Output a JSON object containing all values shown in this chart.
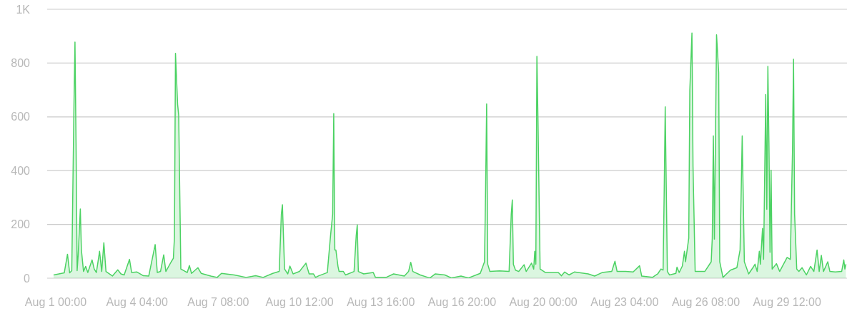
{
  "chart_data": {
    "type": "area",
    "grid": "y",
    "xlim": [
      "--07-31T16:00",
      "--08-31T20:00"
    ],
    "ylim": [
      0,
      1000
    ],
    "yticks": [
      0,
      200,
      400,
      600,
      800,
      {
        "value": 1000,
        "label": "1K"
      }
    ],
    "xticks": [
      {
        "value": "--08-01T00:00",
        "label": "Aug 1 00:00"
      },
      {
        "value": "--08-04T04:00",
        "label": "Aug 4 04:00"
      },
      {
        "value": "--08-07T08:00",
        "label": "Aug 7 08:00"
      },
      {
        "value": "--08-10T12:00",
        "label": "Aug 10 12:00"
      },
      {
        "value": "--08-13T16:00",
        "label": "Aug 13 16:00"
      },
      {
        "value": "--08-16T20:00",
        "label": "Aug 16 20:00"
      },
      {
        "value": "--08-20T00:00",
        "label": "Aug 20 00:00"
      },
      {
        "value": "--08-23T04:00",
        "label": "Aug 23 04:00"
      },
      {
        "value": "--08-26T08:00",
        "label": "Aug 26 08:00"
      },
      {
        "value": "--08-29T12:00",
        "label": "Aug 29 12:00"
      }
    ],
    "x": [
      "--07-31T22:00",
      "--08-01T08:00",
      "--08-01T11:00",
      "--08-01T13:00",
      "--08-01T15:00",
      "--08-01T17:00",
      "--08-01T18:00",
      "--08-01T19:00",
      "--08-01T20:00",
      "--08-01T21:00",
      "--08-01T23:00",
      "--08-02T00:00",
      "--08-02T02:00",
      "--08-02T04:00",
      "--08-02T06:00",
      "--08-02T10:00",
      "--08-02T12:00",
      "--08-02T14:00",
      "--08-02T17:00",
      "--08-02T19:00",
      "--08-02T21:00",
      "--08-02T23:00",
      "--08-03T05:00",
      "--08-03T10:00",
      "--08-03T13:00",
      "--08-03T16:00",
      "--08-03T21:00",
      "--08-03T23:00",
      "--08-04T04:00",
      "--08-04T10:00",
      "--08-04T15:00",
      "--08-04T21:00",
      "--08-04T23:00",
      "--08-05T02:00",
      "--08-05T05:00",
      "--08-05T07:00",
      "--08-05T12:00",
      "--08-05T14:00",
      "--08-05T15:00",
      "--08-05T16:00",
      "--08-05T18:00",
      "--08-05T19:00",
      "--08-05T21:00",
      "--08-06T03:00",
      "--08-06T05:00",
      "--08-06T07:00",
      "--08-06T13:00",
      "--08-06T16:00",
      "--08-07T01:00",
      "--08-07T07:00",
      "--08-07T11:00",
      "--08-07T23:00",
      "--08-08T10:00",
      "--08-08T19:00",
      "--08-09T02:00",
      "--08-09T11:00",
      "--08-09T17:00",
      "--08-09T19:00",
      "--08-09T20:00",
      "--08-09T22:00",
      "--08-10T01:00",
      "--08-10T03:00",
      "--08-10T06:00",
      "--08-10T12:00",
      "--08-10T18:00",
      "--08-10T21:00",
      "--08-11T01:00",
      "--08-11T03:00",
      "--08-11T06:00",
      "--08-11T14:00",
      "--08-11T17:00",
      "--08-11T19:00",
      "--08-11T20:00",
      "--08-11T21:00",
      "--08-11T22:00",
      "--08-12T00:00",
      "--08-12T01:00",
      "--08-12T05:00",
      "--08-12T07:00",
      "--08-12T15:00",
      "--08-12T17:00",
      "--08-12T18:00",
      "--08-12T19:00",
      "--08-13T00:00",
      "--08-13T09:00",
      "--08-13T11:00",
      "--08-13T21:00",
      "--08-14T04:00",
      "--08-14T14:00",
      "--08-14T18:00",
      "--08-14T20:00",
      "--08-14T22:00",
      "--08-15T05:00",
      "--08-15T12:00",
      "--08-15T14:00",
      "--08-15T19:00",
      "--08-16T04:00",
      "--08-16T10:00",
      "--08-16T19:00",
      "--08-17T02:00",
      "--08-17T13:00",
      "--08-17T17:00",
      "--08-17T18:00",
      "--08-17T19:00",
      "--08-17T20:00",
      "--08-17T22:00",
      "--08-18T07:00",
      "--08-18T16:00",
      "--08-18T18:00",
      "--08-18T19:00",
      "--08-18T20:00",
      "--08-18T22:00",
      "--08-19T01:00",
      "--08-19T06:00",
      "--08-19T08:00",
      "--08-19T13:00",
      "--08-19T15:00",
      "--08-19T16:00",
      "--08-19T17:00",
      "--08-19T18:00",
      "--08-19T19:00",
      "--08-19T21:00",
      "--08-20T02:00",
      "--08-20T14:00",
      "--08-20T17:00",
      "--08-20T20:00",
      "--08-21T00:00",
      "--08-21T05:00",
      "--08-21T18:00",
      "--08-22T00:00",
      "--08-22T07:00",
      "--08-22T16:00",
      "--08-22T19:00",
      "--08-22T21:00",
      "--08-23T05:00",
      "--08-23T12:00",
      "--08-23T18:00",
      "--08-23T20:00",
      "--08-24T06:00",
      "--08-24T11:00",
      "--08-24T14:00",
      "--08-24T16:00",
      "--08-24T17:00",
      "--08-24T18:00",
      "--08-24T20:00",
      "--08-24T22:00",
      "--08-25T04:00",
      "--08-25T05:00",
      "--08-25T07:00",
      "--08-25T10:00",
      "--08-25T12:00",
      "--08-25T13:00",
      "--08-25T16:00",
      "--08-25T17:00",
      "--08-25T19:00",
      "--08-25T20:00",
      "--08-25T22:00",
      "--08-26T07:00",
      "--08-26T13:00",
      "--08-26T14:00",
      "--08-26T15:00",
      "--08-26T16:00",
      "--08-26T18:00",
      "--08-26T20:00",
      "--08-26T21:00",
      "--08-27T00:00",
      "--08-27T07:00",
      "--08-27T13:00",
      "--08-27T16:00",
      "--08-27T18:00",
      "--08-27T20:00",
      "--08-28T00:00",
      "--08-28T04:00",
      "--08-28T06:00",
      "--08-28T08:00",
      "--08-28T10:00",
      "--08-28T11:00",
      "--08-28T13:00",
      "--08-28T14:00",
      "--08-28T16:00",
      "--08-28T17:00",
      "--08-28T18:00",
      "--08-28T19:00",
      "--08-28T20:00",
      "--08-28T21:00",
      "--08-28T22:00",
      "--08-29T02:00",
      "--08-29T05:00",
      "--08-29T12:00",
      "--08-29T15:00",
      "--08-29T17:00",
      "--08-29T18:00",
      "--08-29T19:00",
      "--08-29T21:00",
      "--08-29T23:00",
      "--08-30T02:00",
      "--08-30T06:00",
      "--08-30T10:00",
      "--08-30T13:00",
      "--08-30T16:00",
      "--08-30T18:00",
      "--08-30T20:00",
      "--08-30T22:00",
      "--08-31T02:00",
      "--08-31T04:00",
      "--08-31T09:00",
      "--08-31T15:00",
      "--08-31T17:00",
      "--08-31T18:00",
      "--08-31T19:00"
    ],
    "series": [
      {
        "color": "#4cd263",
        "values": [
          12,
          20,
          89,
          20,
          28,
          628,
          878,
          504,
          28,
          87,
          257,
          105,
          25,
          44,
          21,
          68,
          34,
          21,
          100,
          25,
          132,
          25,
          8,
          31,
          16,
          12,
          70,
          21,
          23,
          9,
          8,
          125,
          21,
          25,
          87,
          25,
          61,
          74,
          150,
          836,
          646,
          606,
          34,
          21,
          47,
          18,
          39,
          18,
          8,
          3,
          18,
          12,
          3,
          9,
          3,
          18,
          25,
          238,
          273,
          34,
          16,
          45,
          16,
          25,
          56,
          16,
          16,
          3,
          9,
          21,
          158,
          238,
          612,
          105,
          105,
          43,
          25,
          25,
          12,
          25,
          158,
          198,
          25,
          16,
          21,
          3,
          3,
          16,
          8,
          25,
          59,
          25,
          12,
          3,
          1,
          16,
          12,
          1,
          8,
          1,
          18,
          61,
          327,
          648,
          52,
          25,
          27,
          25,
          238,
          291,
          52,
          30,
          25,
          50,
          25,
          56,
          34,
          100,
          52,
          825,
          593,
          34,
          21,
          21,
          9,
          23,
          12,
          23,
          16,
          8,
          21,
          25,
          63,
          25,
          25,
          23,
          46,
          8,
          3,
          16,
          34,
          30,
          309,
          637,
          25,
          12,
          18,
          41,
          21,
          45,
          100,
          61,
          149,
          699,
          912,
          415,
          25,
          25,
          61,
          149,
          529,
          145,
          905,
          765,
          61,
          3,
          30,
          39,
          105,
          529,
          61,
          16,
          39,
          52,
          25,
          100,
          52,
          185,
          70,
          683,
          256,
          788,
          504,
          96,
          402,
          34,
          54,
          25,
          77,
          70,
          469,
          814,
          238,
          34,
          25,
          39,
          12,
          44,
          25,
          105,
          25,
          85,
          25,
          61,
          25,
          23,
          25,
          68,
          34,
          52
        ]
      }
    ]
  }
}
